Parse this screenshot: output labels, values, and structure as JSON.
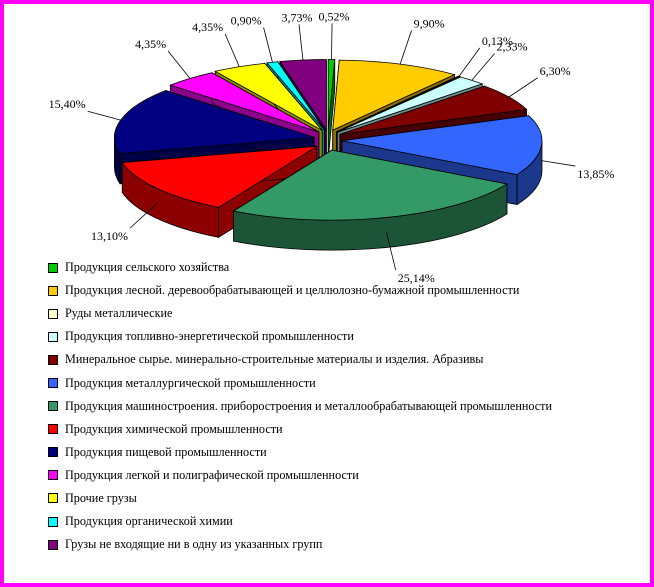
{
  "chart_data": {
    "type": "pie",
    "title": "",
    "legend_position": "bottom",
    "exploded": true,
    "three_d": true,
    "labels": [
      "Продукция сельского хозяйства",
      "Продукция лесной. деревообрабатывающей и целлюлозно-бумажной промышленности",
      "Руды металлические",
      "Продукция топливно-энергетической промышленности",
      "Минеральное сырье. минерально-строительные материалы и изделия. Абразивы",
      "Продукция металлургической промышленности",
      "Продукция машиностроения. приборостроения и металлообрабатывающей промышленности",
      "Продукция химической промышленности",
      "Продукция пищевой промышленности",
      "Продукция легкой и полиграфической промышленности",
      "Прочие грузы",
      "Продукция органической химии",
      "Грузы не входящие ни в одну из указанных групп"
    ],
    "values": [
      0.52,
      9.9,
      0.13,
      2.33,
      6.3,
      13.85,
      25.14,
      13.1,
      15.4,
      4.35,
      4.35,
      0.9,
      3.73
    ],
    "value_labels": [
      "0,52%",
      "9,90%",
      "0,13%",
      "2,33%",
      "6,30%",
      "13,85%",
      "25,14%",
      "13,10%",
      "15,40%",
      "4,35%",
      "4,35%",
      "0,90%",
      "3,73%"
    ],
    "colors": [
      "#00cc00",
      "#ffcc00",
      "#ffffcc",
      "#ccffff",
      "#800000",
      "#3366ff",
      "#339966",
      "#ff0000",
      "#000080",
      "#ff00ff",
      "#ffff00",
      "#00ffff",
      "#800080"
    ],
    "border_color": "#ff00ff"
  }
}
